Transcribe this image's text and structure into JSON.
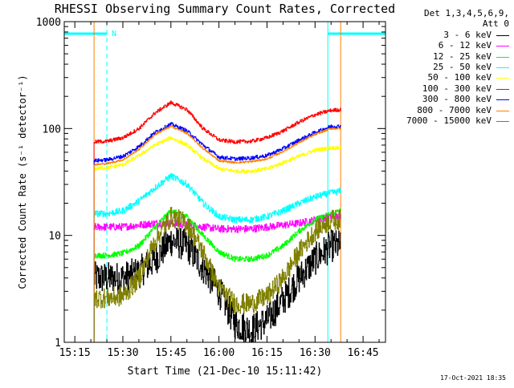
{
  "chart_data": {
    "type": "line",
    "title": "RHESSI Observing Summary Count Rates, Corrected",
    "ylabel": "Corrected Count Rate (s⁻¹ detector⁻¹)",
    "xlabel": "Start Time (21-Dec-10 15:11:42)",
    "y_scale": "log",
    "ylim": [
      1,
      1000
    ],
    "xlim": [
      "15:11:42",
      "16:52:00"
    ],
    "x_ticks": [
      "15:15",
      "15:30",
      "15:45",
      "16:00",
      "16:15",
      "16:30",
      "16:45"
    ],
    "y_ticks": [
      "1",
      "10",
      "100",
      "1000"
    ],
    "legend_header": [
      "Det 1,3,4,5,6,9,",
      "Att 0"
    ],
    "legend_position": "outside-right",
    "timestamp": "17-Oct-2021 18:35",
    "flag_label": "N",
    "data_start": "15:21:00",
    "data_end": "16:38:00",
    "night_intervals": [
      [
        "15:11:42",
        "15:25:00"
      ],
      [
        "16:34:00",
        "16:52:00"
      ]
    ],
    "curve_x": [
      "15:21",
      "15:25",
      "15:30",
      "15:35",
      "15:40",
      "15:45",
      "15:50",
      "15:55",
      "16:00",
      "16:05",
      "16:10",
      "16:15",
      "16:20",
      "16:25",
      "16:30",
      "16:35",
      "16:38"
    ],
    "series": [
      {
        "name": "3 - 6 keV",
        "color": "#000000",
        "noise": 0.35,
        "values": [
          4,
          4,
          4,
          4.5,
          6,
          9,
          8,
          5,
          3,
          1.5,
          1.3,
          1.6,
          2.5,
          4,
          6,
          8,
          8
        ]
      },
      {
        "name": "6 - 12 keV",
        "color": "#ff00ff",
        "noise": 0.08,
        "values": [
          12,
          12,
          12,
          12.5,
          13,
          13,
          12.5,
          12,
          11.5,
          11.5,
          11.5,
          12,
          12.5,
          13,
          14,
          15,
          15
        ]
      },
      {
        "name": "12 - 25 keV",
        "color": "#00ff00",
        "noise": 0.06,
        "values": [
          6.5,
          6.5,
          6.8,
          8,
          12,
          17,
          15,
          10,
          7,
          6,
          6,
          6.5,
          8,
          11,
          14,
          16,
          17
        ]
      },
      {
        "name": "25 - 50 keV",
        "color": "#00ffff",
        "noise": 0.07,
        "values": [
          16,
          16,
          17,
          21,
          28,
          36,
          30,
          20,
          15,
          14,
          14,
          15,
          17,
          20,
          23,
          25,
          26
        ]
      },
      {
        "name": "50 - 100 keV",
        "color": "#ffff00",
        "noise": 0.04,
        "values": [
          42,
          43,
          46,
          56,
          70,
          82,
          70,
          52,
          42,
          40,
          40,
          42,
          48,
          55,
          63,
          66,
          66
        ]
      },
      {
        "name": "100 - 300 keV",
        "color": "#ff0000",
        "noise": 0.04,
        "values": [
          75,
          76,
          82,
          100,
          140,
          175,
          150,
          100,
          78,
          75,
          76,
          82,
          95,
          115,
          135,
          148,
          150
        ]
      },
      {
        "name": "300 - 800 keV",
        "color": "#0000ff",
        "noise": 0.04,
        "values": [
          50,
          51,
          55,
          68,
          92,
          110,
          95,
          70,
          54,
          52,
          53,
          56,
          65,
          78,
          92,
          105,
          105
        ]
      },
      {
        "name": "800 - 7000 keV",
        "color": "#ff8000",
        "noise": 0.02,
        "values": [
          46,
          47,
          51,
          64,
          88,
          105,
          90,
          65,
          50,
          48,
          49,
          52,
          61,
          74,
          88,
          100,
          100
        ]
      },
      {
        "name": "7000 - 15000 keV",
        "color": "#808000",
        "noise": 0.22,
        "values": [
          2.6,
          2.6,
          2.7,
          4,
          9,
          15,
          13,
          7,
          3.2,
          2.3,
          2.3,
          2.7,
          4,
          7,
          11,
          14,
          14
        ]
      }
    ]
  }
}
